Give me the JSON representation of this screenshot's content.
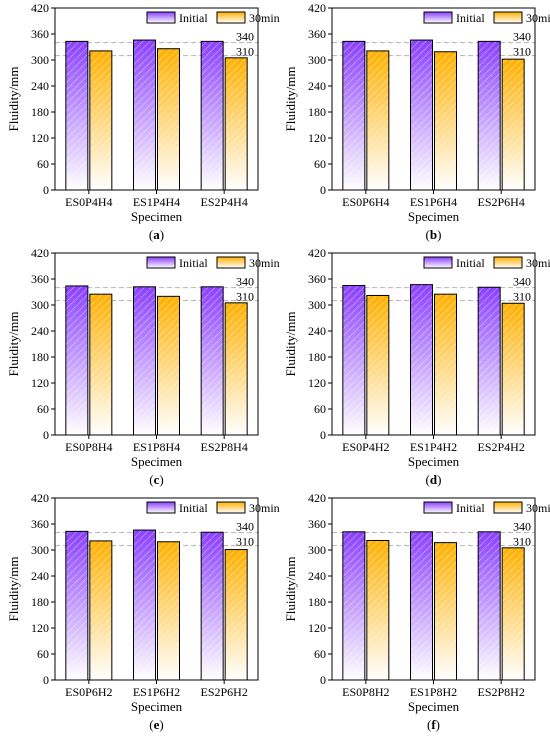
{
  "chart_data": [
    {
      "type": "bar",
      "panel_label": "(a)",
      "categories": [
        "ES0P4H4",
        "ES1P4H4",
        "ES2P4H4"
      ],
      "series": [
        {
          "name": "Initial",
          "values": [
            343,
            346,
            343
          ]
        },
        {
          "name": "30min",
          "values": [
            321,
            326,
            305
          ]
        }
      ],
      "xlabel": "Specimen",
      "ylabel": "Fluidity/mm",
      "ylim": [
        0,
        420
      ],
      "yticks": [
        "0",
        "60",
        "120",
        "180",
        "240",
        "300",
        "360",
        "420"
      ],
      "reference_lines": [
        340,
        310
      ],
      "reference_labels": [
        "340",
        "310"
      ],
      "legend_position": "top-right"
    },
    {
      "type": "bar",
      "panel_label": "(b)",
      "categories": [
        "ES0P6H4",
        "ES1P6H4",
        "ES2P6H4"
      ],
      "series": [
        {
          "name": "Initial",
          "values": [
            343,
            346,
            343
          ]
        },
        {
          "name": "30min",
          "values": [
            321,
            319,
            302
          ]
        }
      ],
      "xlabel": "Specimen",
      "ylabel": "Fluidity/mm",
      "ylim": [
        0,
        420
      ],
      "yticks": [
        "0",
        "60",
        "120",
        "180",
        "240",
        "300",
        "360",
        "420"
      ],
      "reference_lines": [
        340,
        310
      ],
      "reference_labels": [
        "340",
        "310"
      ],
      "legend_position": "top-right"
    },
    {
      "type": "bar",
      "panel_label": "(c)",
      "categories": [
        "ES0P8H4",
        "ES1P8H4",
        "ES2P8H4"
      ],
      "series": [
        {
          "name": "Initial",
          "values": [
            344,
            342,
            342
          ]
        },
        {
          "name": "30min",
          "values": [
            325,
            320,
            305
          ]
        }
      ],
      "xlabel": "Specimen",
      "ylabel": "Fluidity/mm",
      "ylim": [
        0,
        420
      ],
      "yticks": [
        "0",
        "60",
        "120",
        "180",
        "240",
        "300",
        "360",
        "420"
      ],
      "reference_lines": [
        340,
        310
      ],
      "reference_labels": [
        "340",
        "310"
      ],
      "legend_position": "top-right"
    },
    {
      "type": "bar",
      "panel_label": "(d)",
      "categories": [
        "ES0P4H2",
        "ES1P4H2",
        "ES2P4H2"
      ],
      "series": [
        {
          "name": "Initial",
          "values": [
            345,
            347,
            341
          ]
        },
        {
          "name": "30min",
          "values": [
            322,
            325,
            304
          ]
        }
      ],
      "xlabel": "Specimen",
      "ylabel": "Fluidity/mm",
      "ylim": [
        0,
        420
      ],
      "yticks": [
        "0",
        "60",
        "120",
        "180",
        "240",
        "300",
        "360",
        "420"
      ],
      "reference_lines": [
        340,
        310
      ],
      "reference_labels": [
        "340",
        "310"
      ],
      "legend_position": "top-right"
    },
    {
      "type": "bar",
      "panel_label": "(e)",
      "categories": [
        "ES0P6H2",
        "ES1P6H2",
        "ES2P6H2"
      ],
      "series": [
        {
          "name": "Initial",
          "values": [
            343,
            346,
            341
          ]
        },
        {
          "name": "30min",
          "values": [
            321,
            319,
            301
          ]
        }
      ],
      "xlabel": "Specimen",
      "ylabel": "Fluidity/mm",
      "ylim": [
        0,
        420
      ],
      "yticks": [
        "0",
        "60",
        "120",
        "180",
        "240",
        "300",
        "360",
        "420"
      ],
      "reference_lines": [
        340,
        310
      ],
      "reference_labels": [
        "340",
        "310"
      ],
      "legend_position": "top-right"
    },
    {
      "type": "bar",
      "panel_label": "(f)",
      "categories": [
        "ES0P8H2",
        "ES1P8H2",
        "ES2P8H2"
      ],
      "series": [
        {
          "name": "Initial",
          "values": [
            342,
            342,
            342
          ]
        },
        {
          "name": "30min",
          "values": [
            322,
            317,
            305
          ]
        }
      ],
      "xlabel": "Specimen",
      "ylabel": "Fluidity/mm",
      "ylim": [
        0,
        420
      ],
      "yticks": [
        "0",
        "60",
        "120",
        "180",
        "240",
        "300",
        "360",
        "420"
      ],
      "reference_lines": [
        340,
        310
      ],
      "reference_labels": [
        "340",
        "310"
      ],
      "legend_position": "top-right"
    }
  ],
  "colors": {
    "initial_top": "#8a3fff",
    "initial_bottom": "#ffffff",
    "min30_top": "#ffb000",
    "min30_bottom": "#ffffff",
    "reference_line": "#b4b4b4",
    "axis": "#000000"
  }
}
